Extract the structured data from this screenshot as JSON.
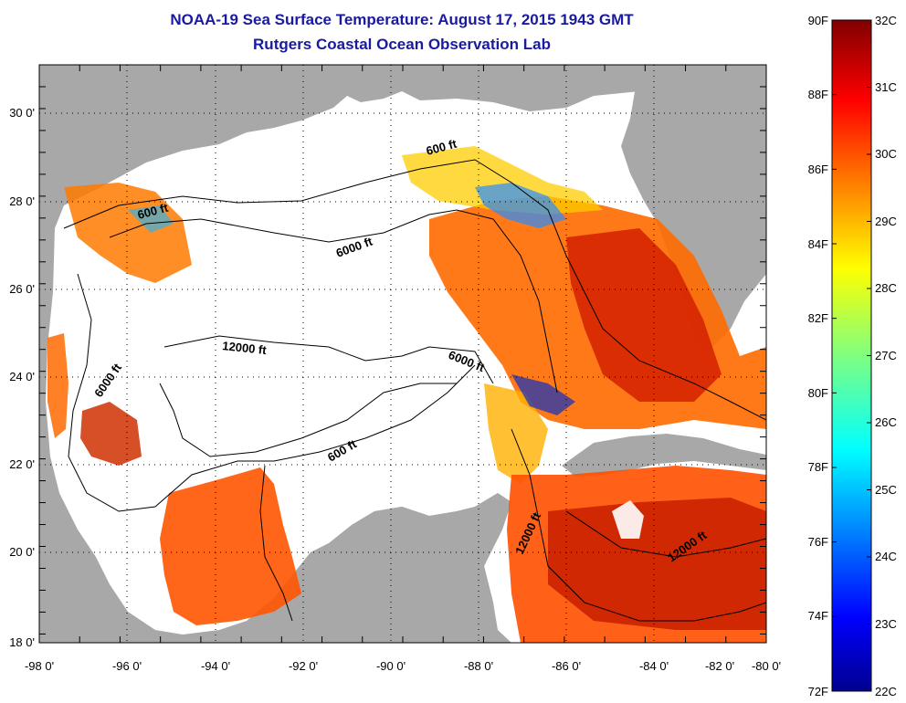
{
  "header": {
    "title": "NOAA-19 Sea Surface Temperature:  August 17, 2015 1943 GMT",
    "subtitle": "Rutgers Coastal Ocean Observation Lab"
  },
  "map": {
    "lat_ticks": [
      "30 0'",
      "28 0'",
      "26 0'",
      "24 0'",
      "22 0'",
      "20 0'",
      "18 0'"
    ],
    "lon_ticks": [
      "-98 0'",
      "-96 0'",
      "-94 0'",
      "-92 0'",
      "-90 0'",
      "-88 0'",
      "-86 0'",
      "-84 0'",
      "-82 0'",
      "-80 0'"
    ],
    "contour_labels": [
      "600 ft",
      "600 ft",
      "6000 ft",
      "12000 ft",
      "6000 ft",
      "6000 ft",
      "600 ft",
      "12000 ft",
      "12000 ft"
    ],
    "colors": {
      "land": "#a8a8a8",
      "no_data": "#ffffff"
    }
  },
  "colorbar": {
    "fahrenheit_labels": [
      "90F",
      "88F",
      "86F",
      "84F",
      "82F",
      "80F",
      "78F",
      "76F",
      "74F",
      "72F"
    ],
    "celsius_labels": [
      "32C",
      "31C",
      "30C",
      "29C",
      "28C",
      "27C",
      "26C",
      "25C",
      "24C",
      "23C",
      "22C"
    ],
    "range_f": [
      72,
      90
    ],
    "range_c": [
      22,
      32
    ],
    "colormap": "jet"
  }
}
